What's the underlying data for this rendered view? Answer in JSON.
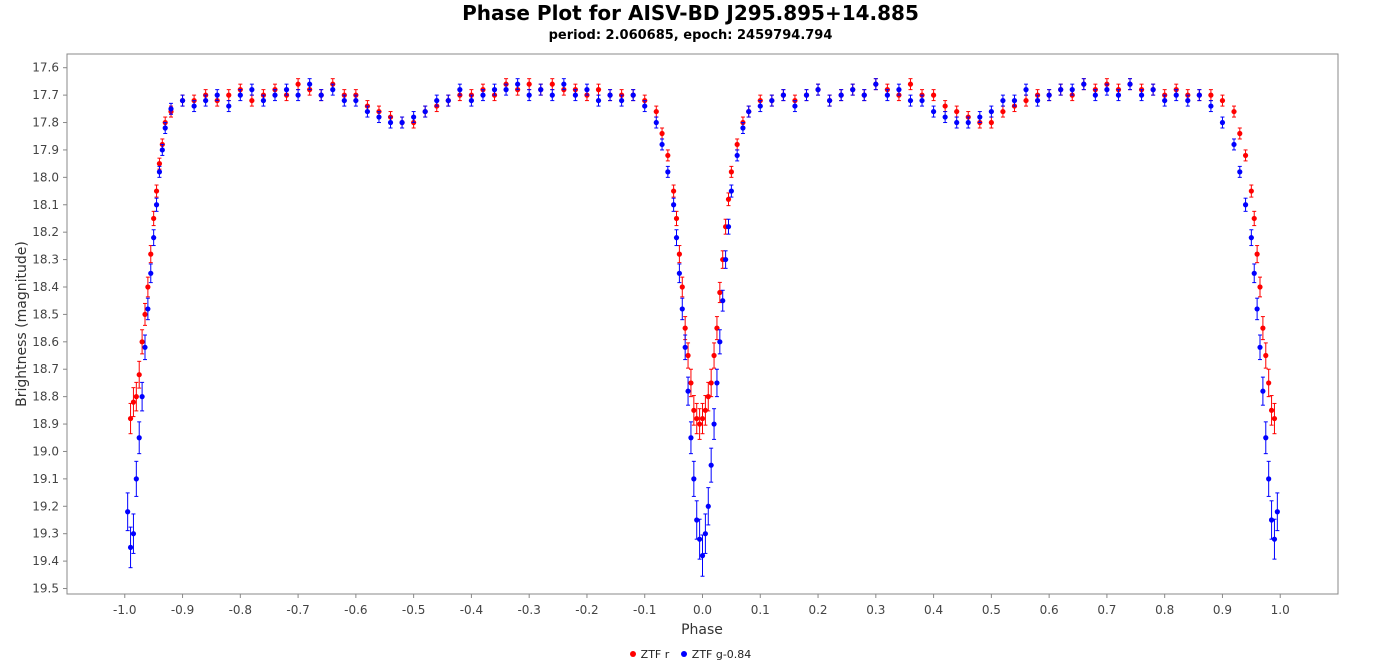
{
  "chart_data": {
    "type": "scatter",
    "title": "Phase Plot for AISV-BD J295.895+14.885",
    "subtitle": "period: 2.060685, epoch: 2459794.794",
    "xlabel": "Phase",
    "ylabel": "Brightness (magnitude)",
    "xlim": [
      -1.1,
      1.1
    ],
    "ylim": [
      19.52,
      17.55
    ],
    "y_inverted": true,
    "grid": false,
    "legend_position": "bottom",
    "x_ticks": [
      -1.0,
      -0.9,
      -0.8,
      -0.7,
      -0.6,
      -0.5,
      -0.4,
      -0.3,
      -0.2,
      -0.1,
      0.0,
      0.1,
      0.2,
      0.3,
      0.4,
      0.5,
      0.6,
      0.7,
      0.8,
      0.9,
      1.0
    ],
    "x_tick_labels": [
      "-1.0",
      "-0.9",
      "-0.8",
      "-0.7",
      "-0.6",
      "-0.5",
      "-0.4",
      "-0.3",
      "-0.2",
      "-0.1",
      "0.0",
      "0.1",
      "0.2",
      "0.3",
      "0.4",
      "0.5",
      "0.6",
      "0.7",
      "0.8",
      "0.9",
      "1.0"
    ],
    "y_ticks": [
      17.6,
      17.7,
      17.8,
      17.9,
      18.0,
      18.1,
      18.2,
      18.3,
      18.4,
      18.5,
      18.6,
      18.7,
      18.8,
      18.9,
      19.0,
      19.1,
      19.2,
      19.3,
      19.4,
      19.5
    ],
    "y_tick_labels": [
      "17.6",
      "17.7",
      "17.8",
      "17.9",
      "18.0",
      "18.1",
      "18.2",
      "18.3",
      "18.4",
      "18.5",
      "18.6",
      "18.7",
      "18.8",
      "18.9",
      "19.0",
      "19.1",
      "19.2",
      "19.3",
      "19.4",
      "19.5"
    ],
    "series": [
      {
        "name": "ZTF r",
        "color": "#ff0000",
        "error_bars": true,
        "points": [
          [
            -0.99,
            18.88
          ],
          [
            -0.985,
            18.82
          ],
          [
            -0.98,
            18.8
          ],
          [
            -0.975,
            18.72
          ],
          [
            -0.97,
            18.6
          ],
          [
            -0.965,
            18.5
          ],
          [
            -0.96,
            18.4
          ],
          [
            -0.955,
            18.28
          ],
          [
            -0.95,
            18.15
          ],
          [
            -0.945,
            18.05
          ],
          [
            -0.94,
            17.95
          ],
          [
            -0.935,
            17.88
          ],
          [
            -0.93,
            17.8
          ],
          [
            -0.92,
            17.76
          ],
          [
            -0.9,
            17.72
          ],
          [
            -0.88,
            17.72
          ],
          [
            -0.86,
            17.7
          ],
          [
            -0.84,
            17.72
          ],
          [
            -0.82,
            17.7
          ],
          [
            -0.8,
            17.68
          ],
          [
            -0.78,
            17.72
          ],
          [
            -0.76,
            17.7
          ],
          [
            -0.74,
            17.68
          ],
          [
            -0.72,
            17.7
          ],
          [
            -0.7,
            17.66
          ],
          [
            -0.68,
            17.68
          ],
          [
            -0.66,
            17.7
          ],
          [
            -0.64,
            17.66
          ],
          [
            -0.62,
            17.7
          ],
          [
            -0.6,
            17.7
          ],
          [
            -0.58,
            17.74
          ],
          [
            -0.56,
            17.76
          ],
          [
            -0.54,
            17.78
          ],
          [
            -0.52,
            17.8
          ],
          [
            -0.5,
            17.8
          ],
          [
            -0.48,
            17.76
          ],
          [
            -0.46,
            17.74
          ],
          [
            -0.44,
            17.72
          ],
          [
            -0.42,
            17.7
          ],
          [
            -0.4,
            17.7
          ],
          [
            -0.38,
            17.68
          ],
          [
            -0.36,
            17.7
          ],
          [
            -0.34,
            17.66
          ],
          [
            -0.32,
            17.68
          ],
          [
            -0.3,
            17.66
          ],
          [
            -0.28,
            17.68
          ],
          [
            -0.26,
            17.66
          ],
          [
            -0.24,
            17.68
          ],
          [
            -0.22,
            17.68
          ],
          [
            -0.2,
            17.7
          ],
          [
            -0.18,
            17.68
          ],
          [
            -0.16,
            17.7
          ],
          [
            -0.14,
            17.7
          ],
          [
            -0.12,
            17.7
          ],
          [
            -0.1,
            17.72
          ],
          [
            -0.08,
            17.76
          ],
          [
            -0.07,
            17.84
          ],
          [
            -0.06,
            17.92
          ],
          [
            -0.05,
            18.05
          ],
          [
            -0.045,
            18.15
          ],
          [
            -0.04,
            18.28
          ],
          [
            -0.035,
            18.4
          ],
          [
            -0.03,
            18.55
          ],
          [
            -0.025,
            18.65
          ],
          [
            -0.02,
            18.75
          ],
          [
            -0.015,
            18.85
          ],
          [
            -0.01,
            18.88
          ],
          [
            -0.005,
            18.9
          ],
          [
            0.0,
            18.88
          ],
          [
            0.005,
            18.85
          ],
          [
            0.01,
            18.8
          ],
          [
            0.015,
            18.75
          ],
          [
            0.02,
            18.65
          ],
          [
            0.025,
            18.55
          ],
          [
            0.03,
            18.42
          ],
          [
            0.035,
            18.3
          ],
          [
            0.04,
            18.18
          ],
          [
            0.045,
            18.08
          ],
          [
            0.05,
            17.98
          ],
          [
            0.06,
            17.88
          ],
          [
            0.07,
            17.8
          ],
          [
            0.08,
            17.76
          ],
          [
            0.1,
            17.72
          ],
          [
            0.12,
            17.72
          ],
          [
            0.14,
            17.7
          ],
          [
            0.16,
            17.72
          ],
          [
            0.18,
            17.7
          ],
          [
            0.2,
            17.68
          ],
          [
            0.22,
            17.72
          ],
          [
            0.24,
            17.7
          ],
          [
            0.26,
            17.68
          ],
          [
            0.28,
            17.7
          ],
          [
            0.3,
            17.66
          ],
          [
            0.32,
            17.68
          ],
          [
            0.34,
            17.7
          ],
          [
            0.36,
            17.66
          ],
          [
            0.38,
            17.7
          ],
          [
            0.4,
            17.7
          ],
          [
            0.42,
            17.74
          ],
          [
            0.44,
            17.76
          ],
          [
            0.46,
            17.78
          ],
          [
            0.48,
            17.8
          ],
          [
            0.5,
            17.8
          ],
          [
            0.52,
            17.76
          ],
          [
            0.54,
            17.74
          ],
          [
            0.56,
            17.72
          ],
          [
            0.58,
            17.7
          ],
          [
            0.6,
            17.7
          ],
          [
            0.62,
            17.68
          ],
          [
            0.64,
            17.7
          ],
          [
            0.66,
            17.66
          ],
          [
            0.68,
            17.68
          ],
          [
            0.7,
            17.66
          ],
          [
            0.72,
            17.68
          ],
          [
            0.74,
            17.66
          ],
          [
            0.76,
            17.68
          ],
          [
            0.78,
            17.68
          ],
          [
            0.8,
            17.7
          ],
          [
            0.82,
            17.68
          ],
          [
            0.84,
            17.7
          ],
          [
            0.86,
            17.7
          ],
          [
            0.88,
            17.7
          ],
          [
            0.9,
            17.72
          ],
          [
            0.92,
            17.76
          ],
          [
            0.93,
            17.84
          ],
          [
            0.94,
            17.92
          ],
          [
            0.95,
            18.05
          ],
          [
            0.955,
            18.15
          ],
          [
            0.96,
            18.28
          ],
          [
            0.965,
            18.4
          ],
          [
            0.97,
            18.55
          ],
          [
            0.975,
            18.65
          ],
          [
            0.98,
            18.75
          ],
          [
            0.985,
            18.85
          ],
          [
            0.99,
            18.88
          ]
        ]
      },
      {
        "name": "ZTF g-0.84",
        "color": "#0000ff",
        "error_bars": true,
        "points": [
          [
            -0.995,
            19.22
          ],
          [
            -0.99,
            19.35
          ],
          [
            -0.985,
            19.3
          ],
          [
            -0.98,
            19.1
          ],
          [
            -0.975,
            18.95
          ],
          [
            -0.97,
            18.8
          ],
          [
            -0.965,
            18.62
          ],
          [
            -0.96,
            18.48
          ],
          [
            -0.955,
            18.35
          ],
          [
            -0.95,
            18.22
          ],
          [
            -0.945,
            18.1
          ],
          [
            -0.94,
            17.98
          ],
          [
            -0.935,
            17.9
          ],
          [
            -0.93,
            17.82
          ],
          [
            -0.92,
            17.75
          ],
          [
            -0.9,
            17.72
          ],
          [
            -0.88,
            17.74
          ],
          [
            -0.86,
            17.72
          ],
          [
            -0.84,
            17.7
          ],
          [
            -0.82,
            17.74
          ],
          [
            -0.8,
            17.7
          ],
          [
            -0.78,
            17.68
          ],
          [
            -0.76,
            17.72
          ],
          [
            -0.74,
            17.7
          ],
          [
            -0.72,
            17.68
          ],
          [
            -0.7,
            17.7
          ],
          [
            -0.68,
            17.66
          ],
          [
            -0.66,
            17.7
          ],
          [
            -0.64,
            17.68
          ],
          [
            -0.62,
            17.72
          ],
          [
            -0.6,
            17.72
          ],
          [
            -0.58,
            17.76
          ],
          [
            -0.56,
            17.78
          ],
          [
            -0.54,
            17.8
          ],
          [
            -0.52,
            17.8
          ],
          [
            -0.5,
            17.78
          ],
          [
            -0.48,
            17.76
          ],
          [
            -0.46,
            17.72
          ],
          [
            -0.44,
            17.72
          ],
          [
            -0.42,
            17.68
          ],
          [
            -0.4,
            17.72
          ],
          [
            -0.38,
            17.7
          ],
          [
            -0.36,
            17.68
          ],
          [
            -0.34,
            17.68
          ],
          [
            -0.32,
            17.66
          ],
          [
            -0.3,
            17.7
          ],
          [
            -0.28,
            17.68
          ],
          [
            -0.26,
            17.7
          ],
          [
            -0.24,
            17.66
          ],
          [
            -0.22,
            17.7
          ],
          [
            -0.2,
            17.68
          ],
          [
            -0.18,
            17.72
          ],
          [
            -0.16,
            17.7
          ],
          [
            -0.14,
            17.72
          ],
          [
            -0.12,
            17.7
          ],
          [
            -0.1,
            17.74
          ],
          [
            -0.08,
            17.8
          ],
          [
            -0.07,
            17.88
          ],
          [
            -0.06,
            17.98
          ],
          [
            -0.05,
            18.1
          ],
          [
            -0.045,
            18.22
          ],
          [
            -0.04,
            18.35
          ],
          [
            -0.035,
            18.48
          ],
          [
            -0.03,
            18.62
          ],
          [
            -0.025,
            18.78
          ],
          [
            -0.02,
            18.95
          ],
          [
            -0.015,
            19.1
          ],
          [
            -0.01,
            19.25
          ],
          [
            -0.005,
            19.32
          ],
          [
            0.0,
            19.38
          ],
          [
            0.005,
            19.3
          ],
          [
            0.01,
            19.2
          ],
          [
            0.015,
            19.05
          ],
          [
            0.02,
            18.9
          ],
          [
            0.025,
            18.75
          ],
          [
            0.03,
            18.6
          ],
          [
            0.035,
            18.45
          ],
          [
            0.04,
            18.3
          ],
          [
            0.045,
            18.18
          ],
          [
            0.05,
            18.05
          ],
          [
            0.06,
            17.92
          ],
          [
            0.07,
            17.82
          ],
          [
            0.08,
            17.76
          ],
          [
            0.1,
            17.74
          ],
          [
            0.12,
            17.72
          ],
          [
            0.14,
            17.7
          ],
          [
            0.16,
            17.74
          ],
          [
            0.18,
            17.7
          ],
          [
            0.2,
            17.68
          ],
          [
            0.22,
            17.72
          ],
          [
            0.24,
            17.7
          ],
          [
            0.26,
            17.68
          ],
          [
            0.28,
            17.7
          ],
          [
            0.3,
            17.66
          ],
          [
            0.32,
            17.7
          ],
          [
            0.34,
            17.68
          ],
          [
            0.36,
            17.72
          ],
          [
            0.38,
            17.72
          ],
          [
            0.4,
            17.76
          ],
          [
            0.42,
            17.78
          ],
          [
            0.44,
            17.8
          ],
          [
            0.46,
            17.8
          ],
          [
            0.48,
            17.78
          ],
          [
            0.5,
            17.76
          ],
          [
            0.52,
            17.72
          ],
          [
            0.54,
            17.72
          ],
          [
            0.56,
            17.68
          ],
          [
            0.58,
            17.72
          ],
          [
            0.6,
            17.7
          ],
          [
            0.62,
            17.68
          ],
          [
            0.64,
            17.68
          ],
          [
            0.66,
            17.66
          ],
          [
            0.68,
            17.7
          ],
          [
            0.7,
            17.68
          ],
          [
            0.72,
            17.7
          ],
          [
            0.74,
            17.66
          ],
          [
            0.76,
            17.7
          ],
          [
            0.78,
            17.68
          ],
          [
            0.8,
            17.72
          ],
          [
            0.82,
            17.7
          ],
          [
            0.84,
            17.72
          ],
          [
            0.86,
            17.7
          ],
          [
            0.88,
            17.74
          ],
          [
            0.9,
            17.8
          ],
          [
            0.92,
            17.88
          ],
          [
            0.93,
            17.98
          ],
          [
            0.94,
            18.1
          ],
          [
            0.95,
            18.22
          ],
          [
            0.955,
            18.35
          ],
          [
            0.96,
            18.48
          ],
          [
            0.965,
            18.62
          ],
          [
            0.97,
            18.78
          ],
          [
            0.975,
            18.95
          ],
          [
            0.98,
            19.1
          ],
          [
            0.985,
            19.25
          ],
          [
            0.99,
            19.32
          ],
          [
            0.995,
            19.22
          ]
        ]
      }
    ]
  },
  "legend": {
    "items": [
      {
        "label": "ZTF r",
        "color": "#ff0000"
      },
      {
        "label": "ZTF g-0.84",
        "color": "#0000ff"
      }
    ]
  }
}
